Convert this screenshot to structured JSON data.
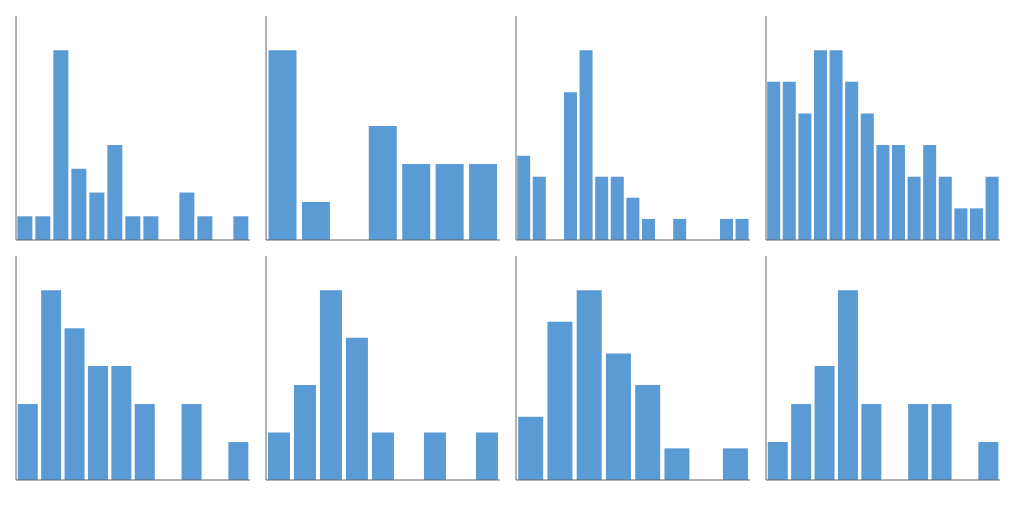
{
  "chart_data": [
    {
      "type": "bar",
      "categories": [
        null,
        null,
        null,
        null,
        null,
        null,
        null,
        null,
        null,
        null,
        null,
        null,
        null
      ],
      "values": [
        1,
        1,
        8,
        3,
        2,
        4,
        1,
        1,
        0,
        2,
        1,
        0,
        1
      ],
      "color": "#5b9bd5",
      "ylim": [
        0,
        9.44
      ],
      "tick_labels": false
    },
    {
      "type": "bar",
      "categories": [
        null,
        null,
        null,
        null,
        null,
        null,
        null
      ],
      "values": [
        5,
        1,
        0,
        3,
        2,
        2,
        2
      ],
      "color": "#5b9bd5",
      "ylim": [
        0,
        5.9
      ],
      "tick_labels": false
    },
    {
      "type": "bar",
      "categories": [
        null,
        null,
        null,
        null,
        null,
        null,
        null,
        null,
        null,
        null,
        null,
        null,
        null,
        null,
        null
      ],
      "values": [
        4,
        3,
        0,
        7,
        9,
        3,
        3,
        2,
        1,
        0,
        1,
        0,
        0,
        1,
        1
      ],
      "color": "#5b9bd5",
      "ylim": [
        0,
        10.62
      ],
      "tick_labels": false
    },
    {
      "type": "bar",
      "categories": [
        null,
        null,
        null,
        null,
        null,
        null,
        null,
        null,
        null,
        null,
        null,
        null,
        null,
        null,
        null
      ],
      "values": [
        5,
        5,
        4,
        6,
        6,
        5,
        4,
        3,
        3,
        2,
        3,
        2,
        1,
        1,
        2
      ],
      "color": "#5b9bd5",
      "ylim": [
        0,
        7.08
      ],
      "tick_labels": false
    },
    {
      "type": "bar",
      "categories": [
        null,
        null,
        null,
        null,
        null,
        null,
        null,
        null,
        null,
        null
      ],
      "values": [
        2,
        5,
        4,
        3,
        3,
        2,
        0,
        2,
        0,
        1
      ],
      "color": "#5b9bd5",
      "ylim": [
        0,
        5.9
      ],
      "tick_labels": false
    },
    {
      "type": "bar",
      "categories": [
        null,
        null,
        null,
        null,
        null,
        null,
        null,
        null,
        null
      ],
      "values": [
        1,
        2,
        4,
        3,
        1,
        0,
        1,
        0,
        1
      ],
      "color": "#5b9bd5",
      "ylim": [
        0,
        4.72
      ],
      "tick_labels": false
    },
    {
      "type": "bar",
      "categories": [
        null,
        null,
        null,
        null,
        null,
        null,
        null,
        null
      ],
      "values": [
        2,
        5,
        6,
        4,
        3,
        1,
        0,
        1
      ],
      "color": "#5b9bd5",
      "ylim": [
        0,
        7.08
      ],
      "tick_labels": false
    },
    {
      "type": "bar",
      "categories": [
        null,
        null,
        null,
        null,
        null,
        null,
        null,
        null,
        null,
        null
      ],
      "values": [
        1,
        2,
        3,
        5,
        2,
        0,
        2,
        2,
        0,
        1
      ],
      "color": "#5b9bd5",
      "ylim": [
        0,
        5.9
      ],
      "tick_labels": false
    }
  ]
}
